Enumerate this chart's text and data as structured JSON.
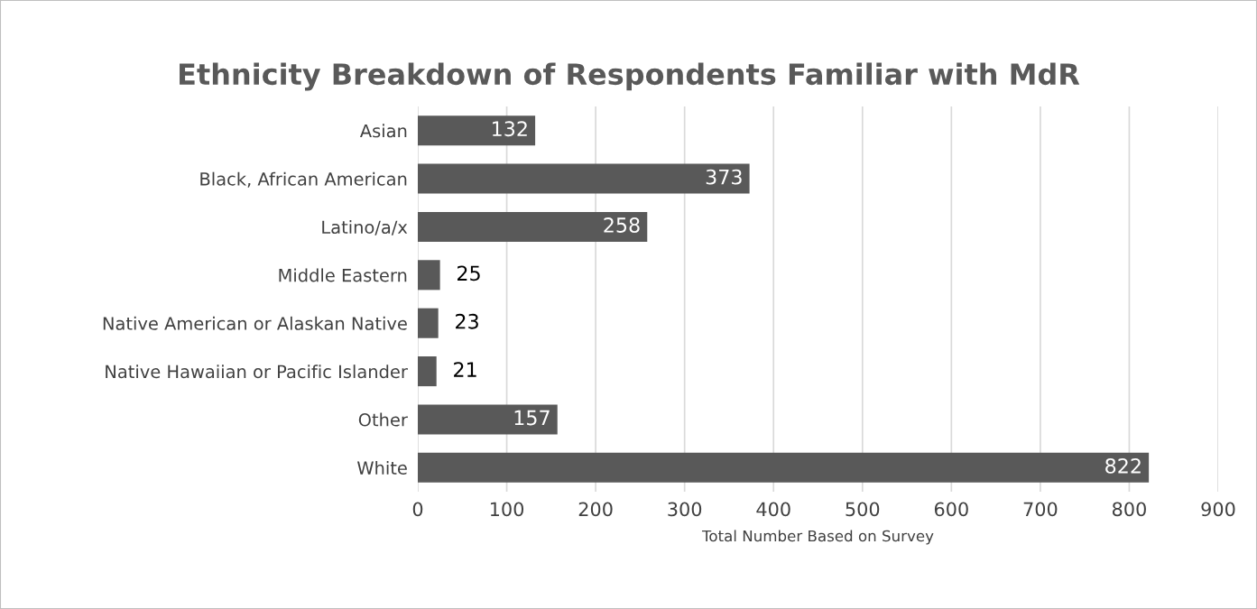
{
  "chart_data": {
    "type": "bar",
    "orientation": "horizontal",
    "title": "Ethnicity Breakdown of Respondents Familiar with MdR",
    "xlabel": "Total Number Based on Survey",
    "categories": [
      "Asian",
      "Black, African American",
      "Latino/a/x",
      "Middle Eastern",
      "Native American or Alaskan Native",
      "Native Hawaiian or Pacific Islander",
      "Other",
      "White"
    ],
    "values": [
      132,
      373,
      258,
      25,
      23,
      21,
      157,
      822
    ],
    "color": "#595959",
    "xlim": [
      0,
      900
    ],
    "xticks": [
      0,
      100,
      200,
      300,
      400,
      500,
      600,
      700,
      800,
      900
    ],
    "grid": "x",
    "data_labels": true
  }
}
